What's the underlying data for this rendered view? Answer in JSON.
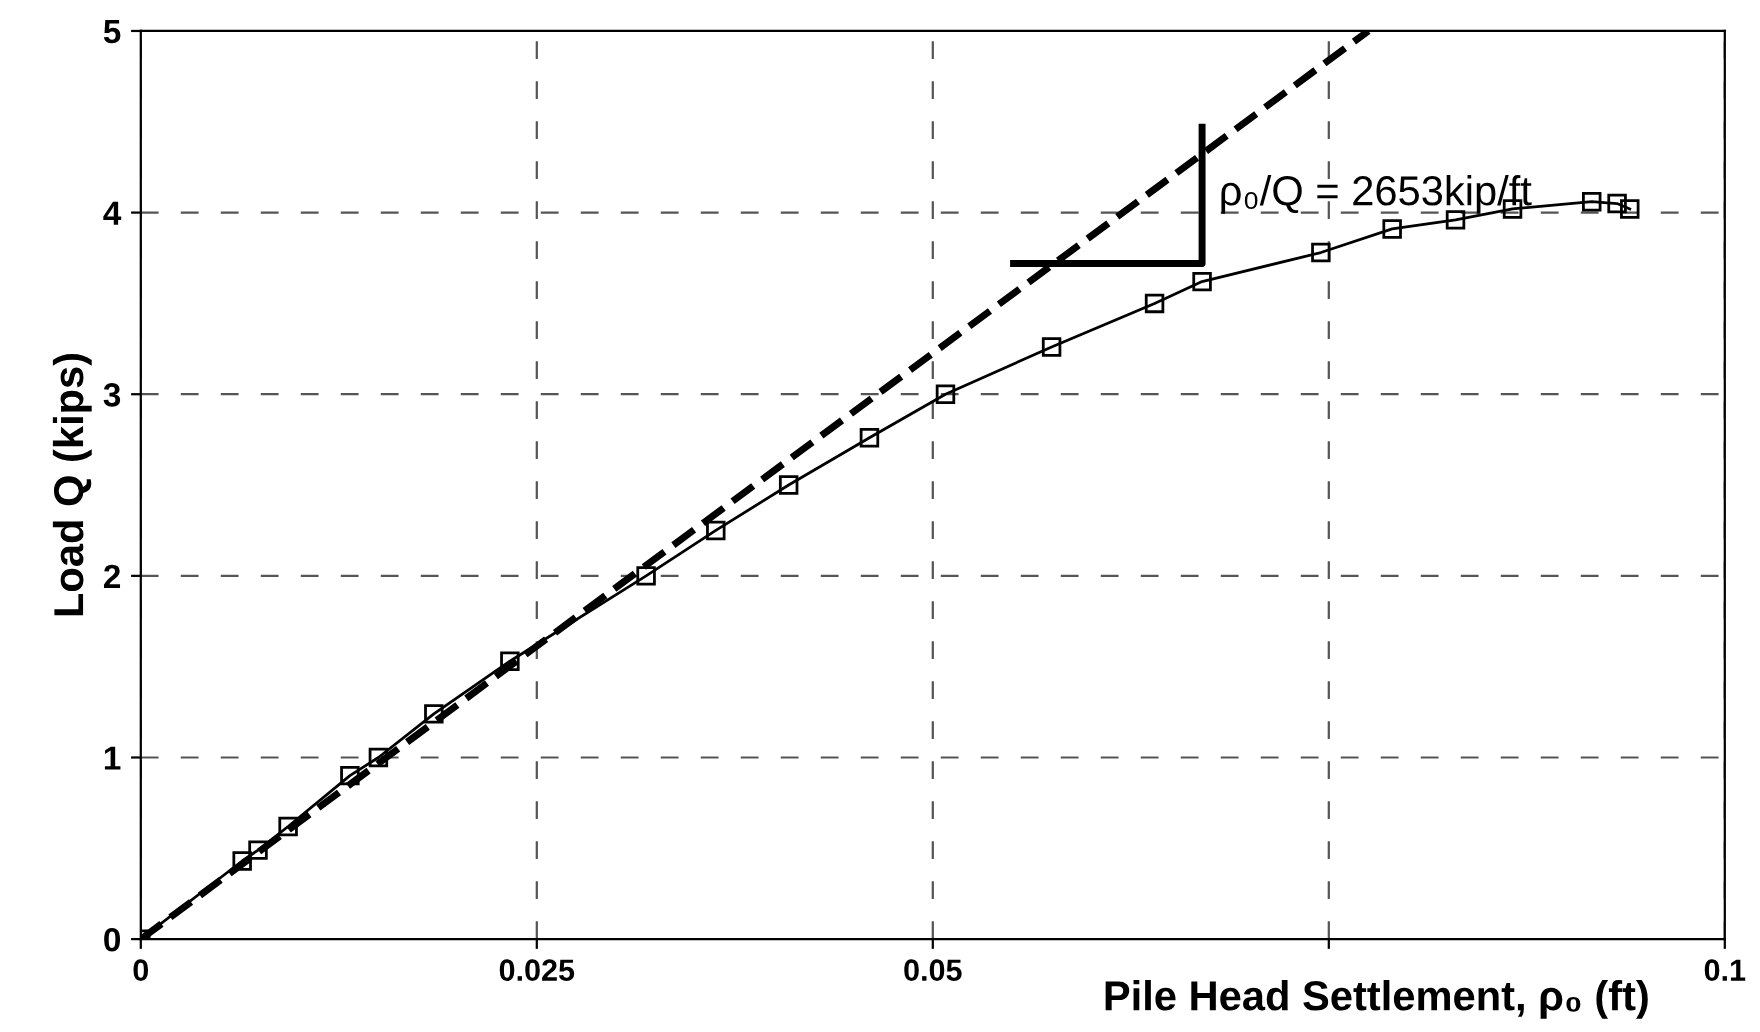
{
  "chart_data": {
    "type": "line",
    "xlabel": "Pile Head Settlement, ρ₀ (ft)",
    "ylabel": "Load Q (kips)",
    "xlim": [
      0,
      0.1
    ],
    "ylim": [
      0,
      5
    ],
    "xticks": [
      0,
      0.025,
      0.05,
      {
        "value": 0.075,
        "label": null
      },
      0.1
    ],
    "yticks": [
      0,
      1,
      2,
      3,
      4,
      5
    ],
    "grid": true,
    "series": [
      {
        "color": "#000000",
        "marker": "square",
        "line_style": "solid",
        "x": [
          0,
          0.0064,
          0.0074,
          0.0093,
          0.0132,
          0.015,
          0.0185,
          0.0233,
          0.0319,
          0.0363,
          0.0409,
          0.046,
          0.0508,
          0.0575,
          0.064,
          0.067,
          0.0745,
          0.079,
          0.083,
          0.0866,
          0.0916,
          0.0932,
          0.094
        ],
        "values": [
          0,
          0.43,
          0.49,
          0.62,
          0.9,
          1.0,
          1.24,
          1.53,
          2.0,
          2.25,
          2.5,
          2.76,
          3.0,
          3.26,
          3.5,
          3.62,
          3.78,
          3.91,
          3.96,
          4.02,
          4.06,
          4.05,
          4.02
        ]
      },
      {
        "color": "#000000",
        "marker": "none",
        "line_style": "dashed",
        "x": [
          0,
          0.0775
        ],
        "values": [
          0,
          5
        ]
      },
      {
        "color": "#000000",
        "marker": "none",
        "line_style": "solid",
        "x": [
          0.0551,
          0.067,
          0.067
        ],
        "values": [
          3.72,
          3.72,
          4.47
        ]
      }
    ],
    "annotations": [
      {
        "text": "ρ₀/Q = 2653kip/ft",
        "x": 0.067,
        "y": 4.1
      }
    ]
  }
}
